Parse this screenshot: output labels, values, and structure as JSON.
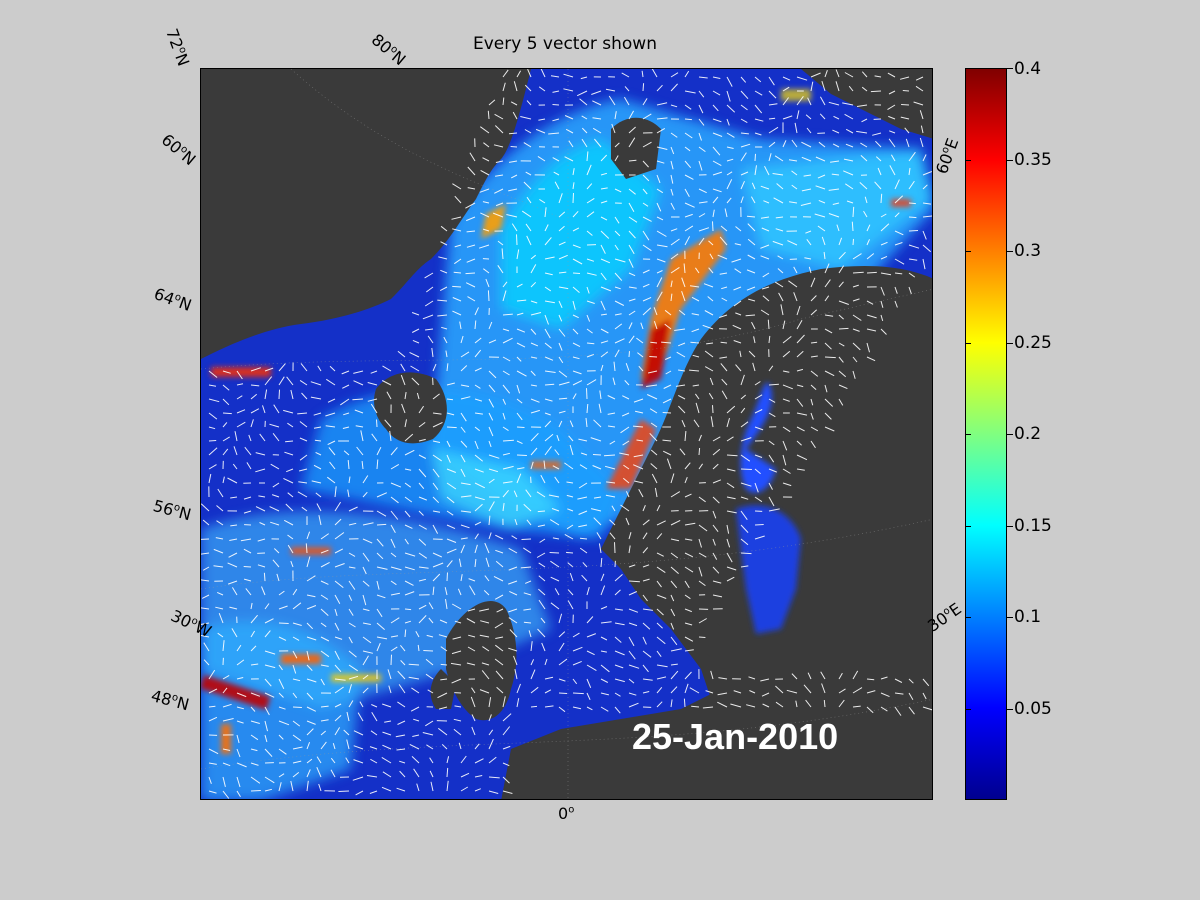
{
  "title": "Every 5 vector shown",
  "date": "25-Jan-2010",
  "grid_labels": {
    "lat_72": "72",
    "lat_80": "80",
    "lat_60": "60",
    "lat_64": "64",
    "lat_56": "56",
    "lat_48": "48",
    "lon_30w": "30",
    "lon_0": "0",
    "lon_30e": "30",
    "lon_60e": "60",
    "deg": "o",
    "suffix_n": "N",
    "suffix_w": "W",
    "suffix_e": "E"
  },
  "colorbar": {
    "min": 0,
    "max": 0.4,
    "ticks": [
      "0.4",
      "0.35",
      "0.3",
      "0.25",
      "0.2",
      "0.15",
      "0.1",
      "0.05"
    ],
    "colormap": [
      "#00008f",
      "#0000ff",
      "#0080ff",
      "#00ffff",
      "#80ff80",
      "#ffff00",
      "#ff8000",
      "#ff0000",
      "#800000"
    ]
  },
  "colors": {
    "land": "#3a3a3a",
    "background": "#cccccc",
    "ocean_base": "#1430c8",
    "vectors": "#ffffff"
  }
}
